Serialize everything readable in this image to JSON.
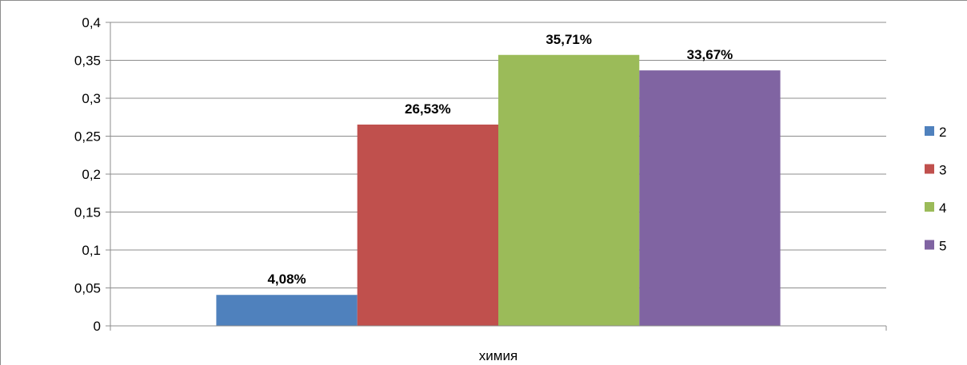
{
  "chart_data": {
    "type": "bar",
    "categories": [
      "химия"
    ],
    "series": [
      {
        "name": "2",
        "values": [
          0.0408
        ],
        "label": "4,08%",
        "color": "#4f81bd"
      },
      {
        "name": "3",
        "values": [
          0.2653
        ],
        "label": "26,53%",
        "color": "#c0504d"
      },
      {
        "name": "4",
        "values": [
          0.3571
        ],
        "label": "35,71%",
        "color": "#9bbb59"
      },
      {
        "name": "5",
        "values": [
          0.3367
        ],
        "label": "33,67%",
        "color": "#8064a2"
      }
    ],
    "yticks": [
      "0",
      "0,05",
      "0,1",
      "0,15",
      "0,2",
      "0,25",
      "0,3",
      "0,35",
      "0,4"
    ],
    "ylim": [
      0,
      0.4
    ],
    "grid": true,
    "legend": "right",
    "title": "",
    "xlabel": "",
    "ylabel": ""
  }
}
